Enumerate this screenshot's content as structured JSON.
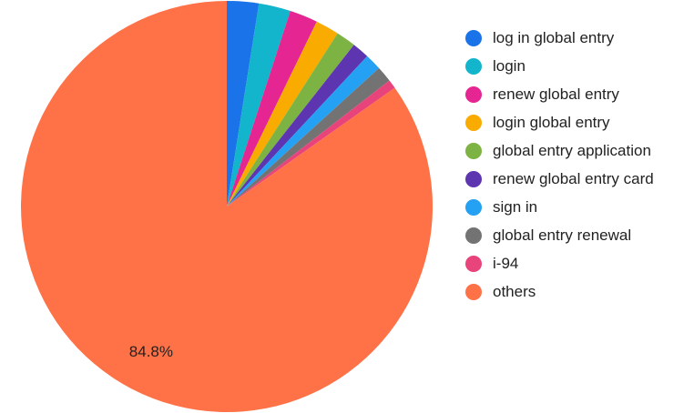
{
  "chart_data": {
    "type": "pie",
    "categories": [
      "log in global entry",
      "login",
      "renew global entry",
      "login global entry",
      "global entry application",
      "renew global entry card",
      "sign in",
      "global entry renewal",
      "i-94",
      "others"
    ],
    "values": [
      2.5,
      2.5,
      2.2,
      1.85,
      1.55,
      1.35,
      1.3,
      1.25,
      0.7,
      84.8
    ],
    "value_labels": [
      null,
      null,
      null,
      null,
      null,
      null,
      null,
      null,
      null,
      "84.8%"
    ],
    "colors": [
      "#1a73e8",
      "#12b5cb",
      "#e52592",
      "#f9ab00",
      "#7cb342",
      "#5e35b1",
      "#24a1f2",
      "#737373",
      "#e8437a",
      "#ff7146"
    ],
    "legend": "right"
  }
}
